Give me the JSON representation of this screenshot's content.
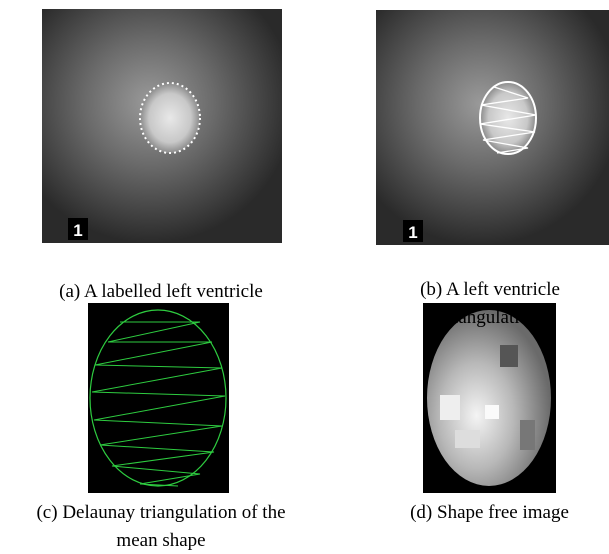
{
  "panels": [
    {
      "caption": "(a) A labelled left ventricle",
      "label": "1"
    },
    {
      "caption": "(b) A left ventricle triangulation",
      "label": "1"
    },
    {
      "caption": "(c) Delaunay triangulation of the mean shape"
    },
    {
      "caption": "(d) Shape free image"
    }
  ]
}
